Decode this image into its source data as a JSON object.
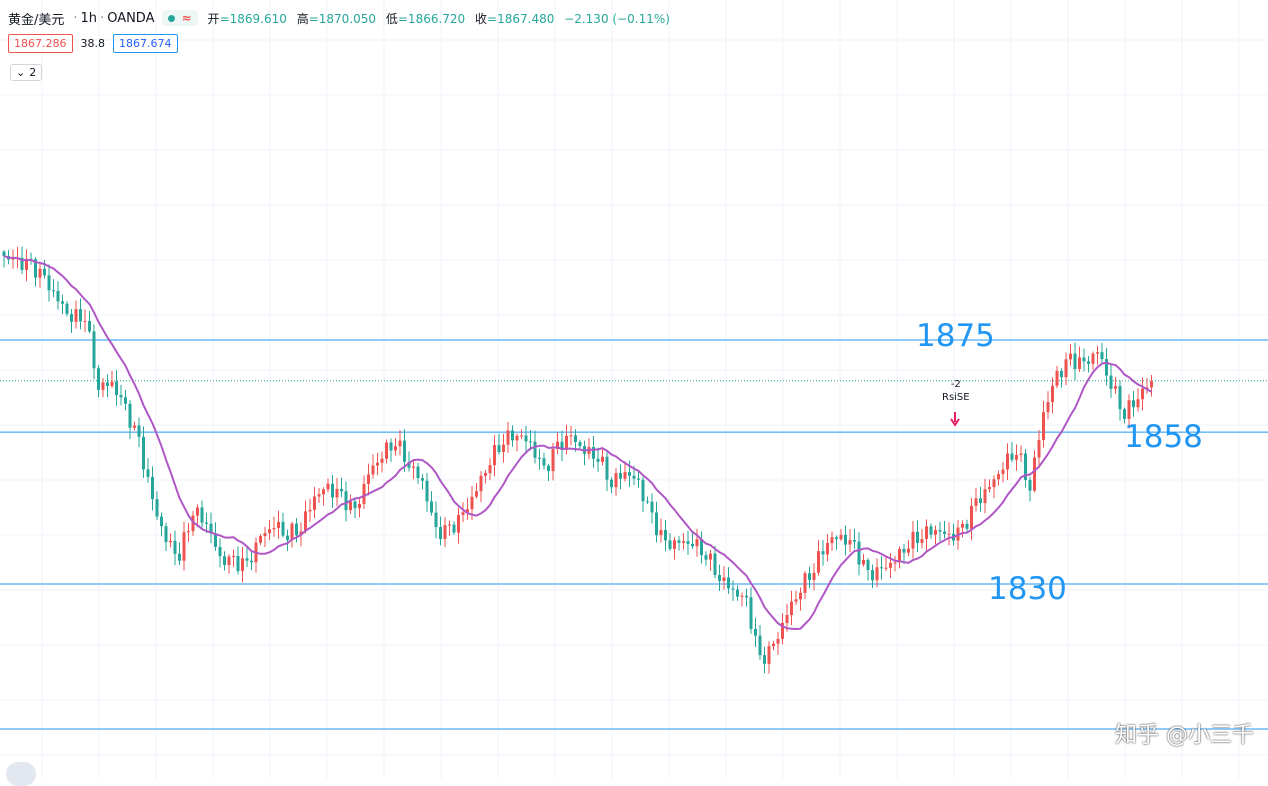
{
  "header": {
    "symbol": "黄金/美元",
    "interval": "1h",
    "source": "OANDA",
    "open_label": "开",
    "open": "=1869.610",
    "high_label": "高",
    "high": "=1870.050",
    "low_label": "低",
    "low": "=1866.720",
    "close_label": "收",
    "close": "=1867.480",
    "change": "−2.130 (−0.11%)"
  },
  "quotes": {
    "bid": "1867.286",
    "spread": "38.8",
    "ask": "1867.674"
  },
  "indicator_toggle": {
    "count": "2"
  },
  "levels": {
    "l1875": "1875",
    "l1858": "1858",
    "l1830": "1830"
  },
  "signal": {
    "qty": "-2",
    "name": "RsiSE"
  },
  "watermark": "知乎 @小三千",
  "colors": {
    "up": "#ef5350",
    "down": "#26a69a",
    "ma": "#b057c6",
    "level_line": "#2196f3"
  },
  "chart_data": {
    "type": "candlestick",
    "price_levels": [
      1875,
      1858,
      1830
    ],
    "current_price": 1867.48,
    "series": [
      {
        "name": "",
        "values": [
          1890.5,
          1889.2,
          1888.6,
          1886.1,
          1882.3,
          1879.4,
          1879.8,
          1866.5,
          1867.0,
          1862.1,
          1855.9,
          1845.1,
          1838.2,
          1835.5,
          1843.8,
          1841.5,
          1834.5,
          1833.9,
          1833.2,
          1838.6,
          1841.1,
          1839.4,
          1840.7,
          1846.2,
          1847.6,
          1845.8,
          1843.1,
          1850.3,
          1854.1,
          1856.7,
          1852.2,
          1848.8,
          1839.4,
          1839.7,
          1842.6,
          1847.5,
          1853.1,
          1856.9,
          1857.8,
          1855.7,
          1850.6,
          1855.1,
          1857.1,
          1854.7,
          1853.8,
          1848.9,
          1850.8,
          1848.4,
          1841.9,
          1837.1,
          1837.6,
          1837.9,
          1835.8,
          1831.4,
          1828.8,
          1826.5,
          1815.6,
          1818.3,
          1824.6,
          1829.5,
          1833.3,
          1838.1,
          1838.6,
          1836.6,
          1831.4,
          1832.5,
          1834.6,
          1837.8,
          1839.4,
          1840.2,
          1838.5,
          1839.8,
          1844.8,
          1847.8,
          1852.0,
          1855.1,
          1848.1,
          1861.6,
          1868.3,
          1871.2,
          1870.3,
          1873.0,
          1867.1,
          1861.7,
          1864.7,
          1867.4
        ]
      }
    ],
    "moving_average": "purple line following price"
  }
}
